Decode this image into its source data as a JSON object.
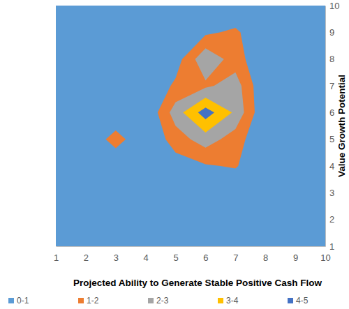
{
  "chart_data": {
    "type": "contour",
    "x_label": "Projected Ability to Generate Stable Positive Cash Flow",
    "y_label": "Value Growth Potential",
    "x": [
      1,
      2,
      3,
      4,
      5,
      6,
      7,
      8,
      9,
      10
    ],
    "y": [
      1,
      2,
      3,
      4,
      5,
      6,
      7,
      8,
      9,
      10
    ],
    "z": [
      [
        0,
        0,
        0,
        0,
        0,
        0,
        0,
        0,
        0,
        0
      ],
      [
        0,
        0,
        0,
        0,
        0,
        0,
        0,
        0,
        0,
        0
      ],
      [
        0,
        0,
        0,
        0,
        0,
        0,
        0,
        0,
        0,
        0
      ],
      [
        0,
        0,
        0,
        0,
        0.5,
        0.9,
        1.1,
        0,
        0,
        0
      ],
      [
        0,
        0,
        1.5,
        0,
        1.5,
        2.5,
        1.5,
        0,
        0,
        0
      ],
      [
        0,
        0,
        0,
        0,
        2.5,
        4.5,
        2.8,
        0,
        0,
        0
      ],
      [
        0,
        0,
        0,
        0,
        1.2,
        1.8,
        2.5,
        0,
        0,
        0
      ],
      [
        0,
        0,
        0,
        0,
        0.5,
        2.8,
        1.5,
        0,
        0,
        0
      ],
      [
        0,
        0,
        0,
        0,
        0,
        0.8,
        1.2,
        0,
        0,
        0
      ],
      [
        0,
        0,
        0,
        0,
        0,
        0,
        0,
        0,
        0,
        0
      ]
    ],
    "bands": [
      {
        "name": "0-1",
        "color": "#5b9bd5",
        "range": [
          0,
          1
        ]
      },
      {
        "name": "1-2",
        "color": "#ed7d31",
        "range": [
          1,
          2
        ]
      },
      {
        "name": "2-3",
        "color": "#a5a5a5",
        "range": [
          2,
          3
        ]
      },
      {
        "name": "3-4",
        "color": "#ffc000",
        "range": [
          3,
          4
        ]
      },
      {
        "name": "4-5",
        "color": "#4472c4",
        "range": [
          4,
          5
        ]
      }
    ],
    "xlim": [
      1,
      10
    ],
    "ylim": [
      1,
      10
    ],
    "xticks": [
      1,
      2,
      3,
      4,
      5,
      6,
      7,
      8,
      9,
      10
    ],
    "yticks": [
      1,
      2,
      3,
      4,
      5,
      6,
      7,
      8,
      9,
      10
    ],
    "grid": false,
    "legend": "bottom"
  }
}
